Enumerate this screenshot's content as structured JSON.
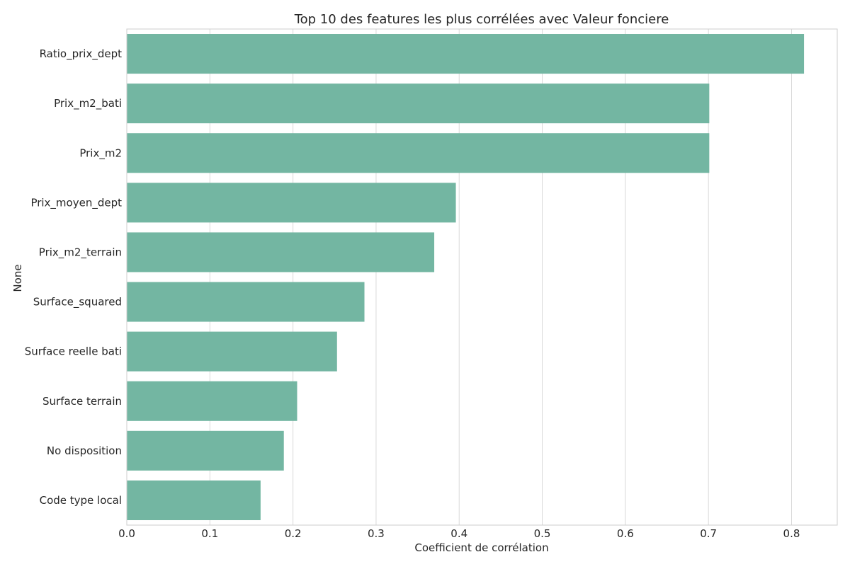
{
  "chart_data": {
    "type": "bar",
    "orientation": "horizontal",
    "title": "Top 10 des features les plus corrélées avec Valeur fonciere",
    "xlabel": "Coefficient de corrélation",
    "ylabel": "None",
    "xlim": [
      0,
      0.855
    ],
    "xticks": [
      "0.0",
      "0.1",
      "0.2",
      "0.3",
      "0.4",
      "0.5",
      "0.6",
      "0.7",
      "0.8"
    ],
    "grid": true,
    "categories": [
      "Ratio_prix_dept",
      "Prix_m2_bati",
      "Prix_m2",
      "Prix_moyen_dept",
      "Prix_m2_terrain",
      "Surface_squared",
      "Surface reelle bati",
      "Surface terrain",
      "No disposition",
      "Code type local"
    ],
    "values": [
      0.815,
      0.701,
      0.701,
      0.396,
      0.37,
      0.286,
      0.253,
      0.205,
      0.189,
      0.161
    ],
    "colors": {
      "bar": "#73b6a2",
      "grid": "#d9d9d9",
      "spine": "#cccccc",
      "text": "#262626"
    }
  }
}
